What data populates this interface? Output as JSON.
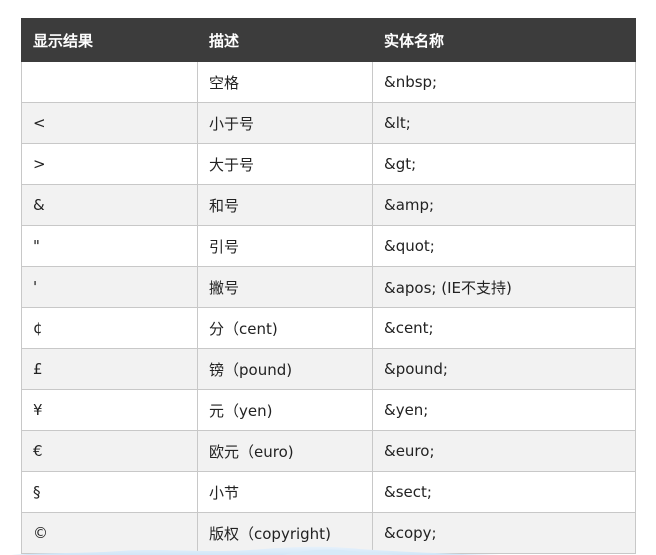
{
  "table": {
    "headers": [
      "显示结果",
      "描述",
      "实体名称"
    ],
    "rows": [
      {
        "result": "",
        "description": "空格",
        "entity": "&nbsp;"
      },
      {
        "result": "<",
        "description": "小于号",
        "entity": "&lt;"
      },
      {
        "result": ">",
        "description": "大于号",
        "entity": "&gt;"
      },
      {
        "result": "&",
        "description": "和号",
        "entity": "&amp;"
      },
      {
        "result": "\"",
        "description": "引号",
        "entity": "&quot;"
      },
      {
        "result": "'",
        "description": "撇号",
        "entity": "&apos; (IE不支持)"
      },
      {
        "result": "¢",
        "description": "分（cent)",
        "entity": "&cent;"
      },
      {
        "result": "£",
        "description": "镑（pound)",
        "entity": "&pound;"
      },
      {
        "result": "¥",
        "description": "元（yen)",
        "entity": "&yen;"
      },
      {
        "result": "€",
        "description": "欧元（euro)",
        "entity": "&euro;"
      },
      {
        "result": "§",
        "description": "小节",
        "entity": "&sect;"
      },
      {
        "result": "©",
        "description": "版权（copyright)",
        "entity": "&copy;"
      }
    ]
  },
  "colors": {
    "header_background": "#3c3c3c",
    "header_text": "#ffffff",
    "row_alt_background": "#f2f2f2",
    "border": "#c8c8c8"
  }
}
